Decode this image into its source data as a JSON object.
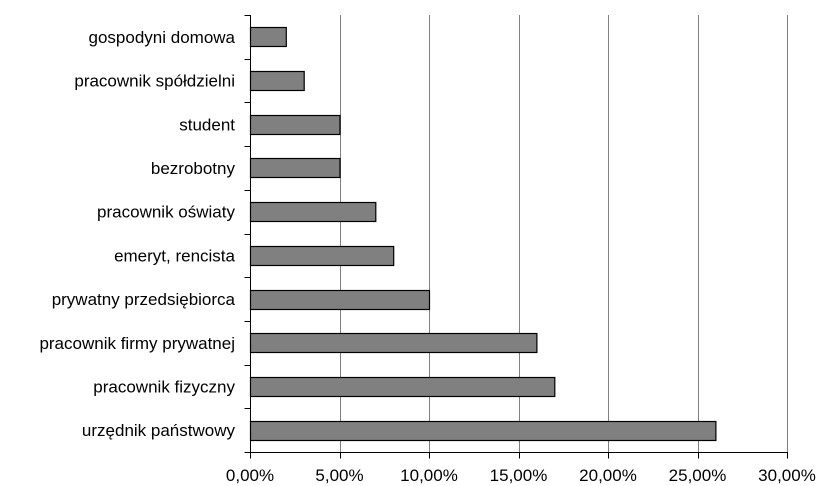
{
  "chart_data": {
    "type": "bar",
    "orientation": "horizontal",
    "title": "",
    "xlabel": "",
    "ylabel": "",
    "categories": [
      "gospodyni domowa",
      "pracownik spółdzielni",
      "student",
      "bezrobotny",
      "pracownik oświaty",
      "emeryt, rencista",
      "prywatny przedsiębiorca",
      "pracownik firmy prywatnej",
      "pracownik fizyczny",
      "urzędnik państwowy"
    ],
    "values": [
      2,
      3,
      5,
      5,
      7,
      8,
      10,
      16,
      17,
      26
    ],
    "xlim": [
      0,
      30
    ],
    "x_ticks": [
      0,
      5,
      10,
      15,
      20,
      25,
      30
    ],
    "x_tick_labels": [
      "0,00%",
      "5,00%",
      "10,00%",
      "15,00%",
      "20,00%",
      "25,00%",
      "30,00%"
    ],
    "grid": "vertical",
    "legend": "none",
    "bar_color": "#808080",
    "bar_edge_color": "#000000",
    "grid_color": "#808080"
  }
}
